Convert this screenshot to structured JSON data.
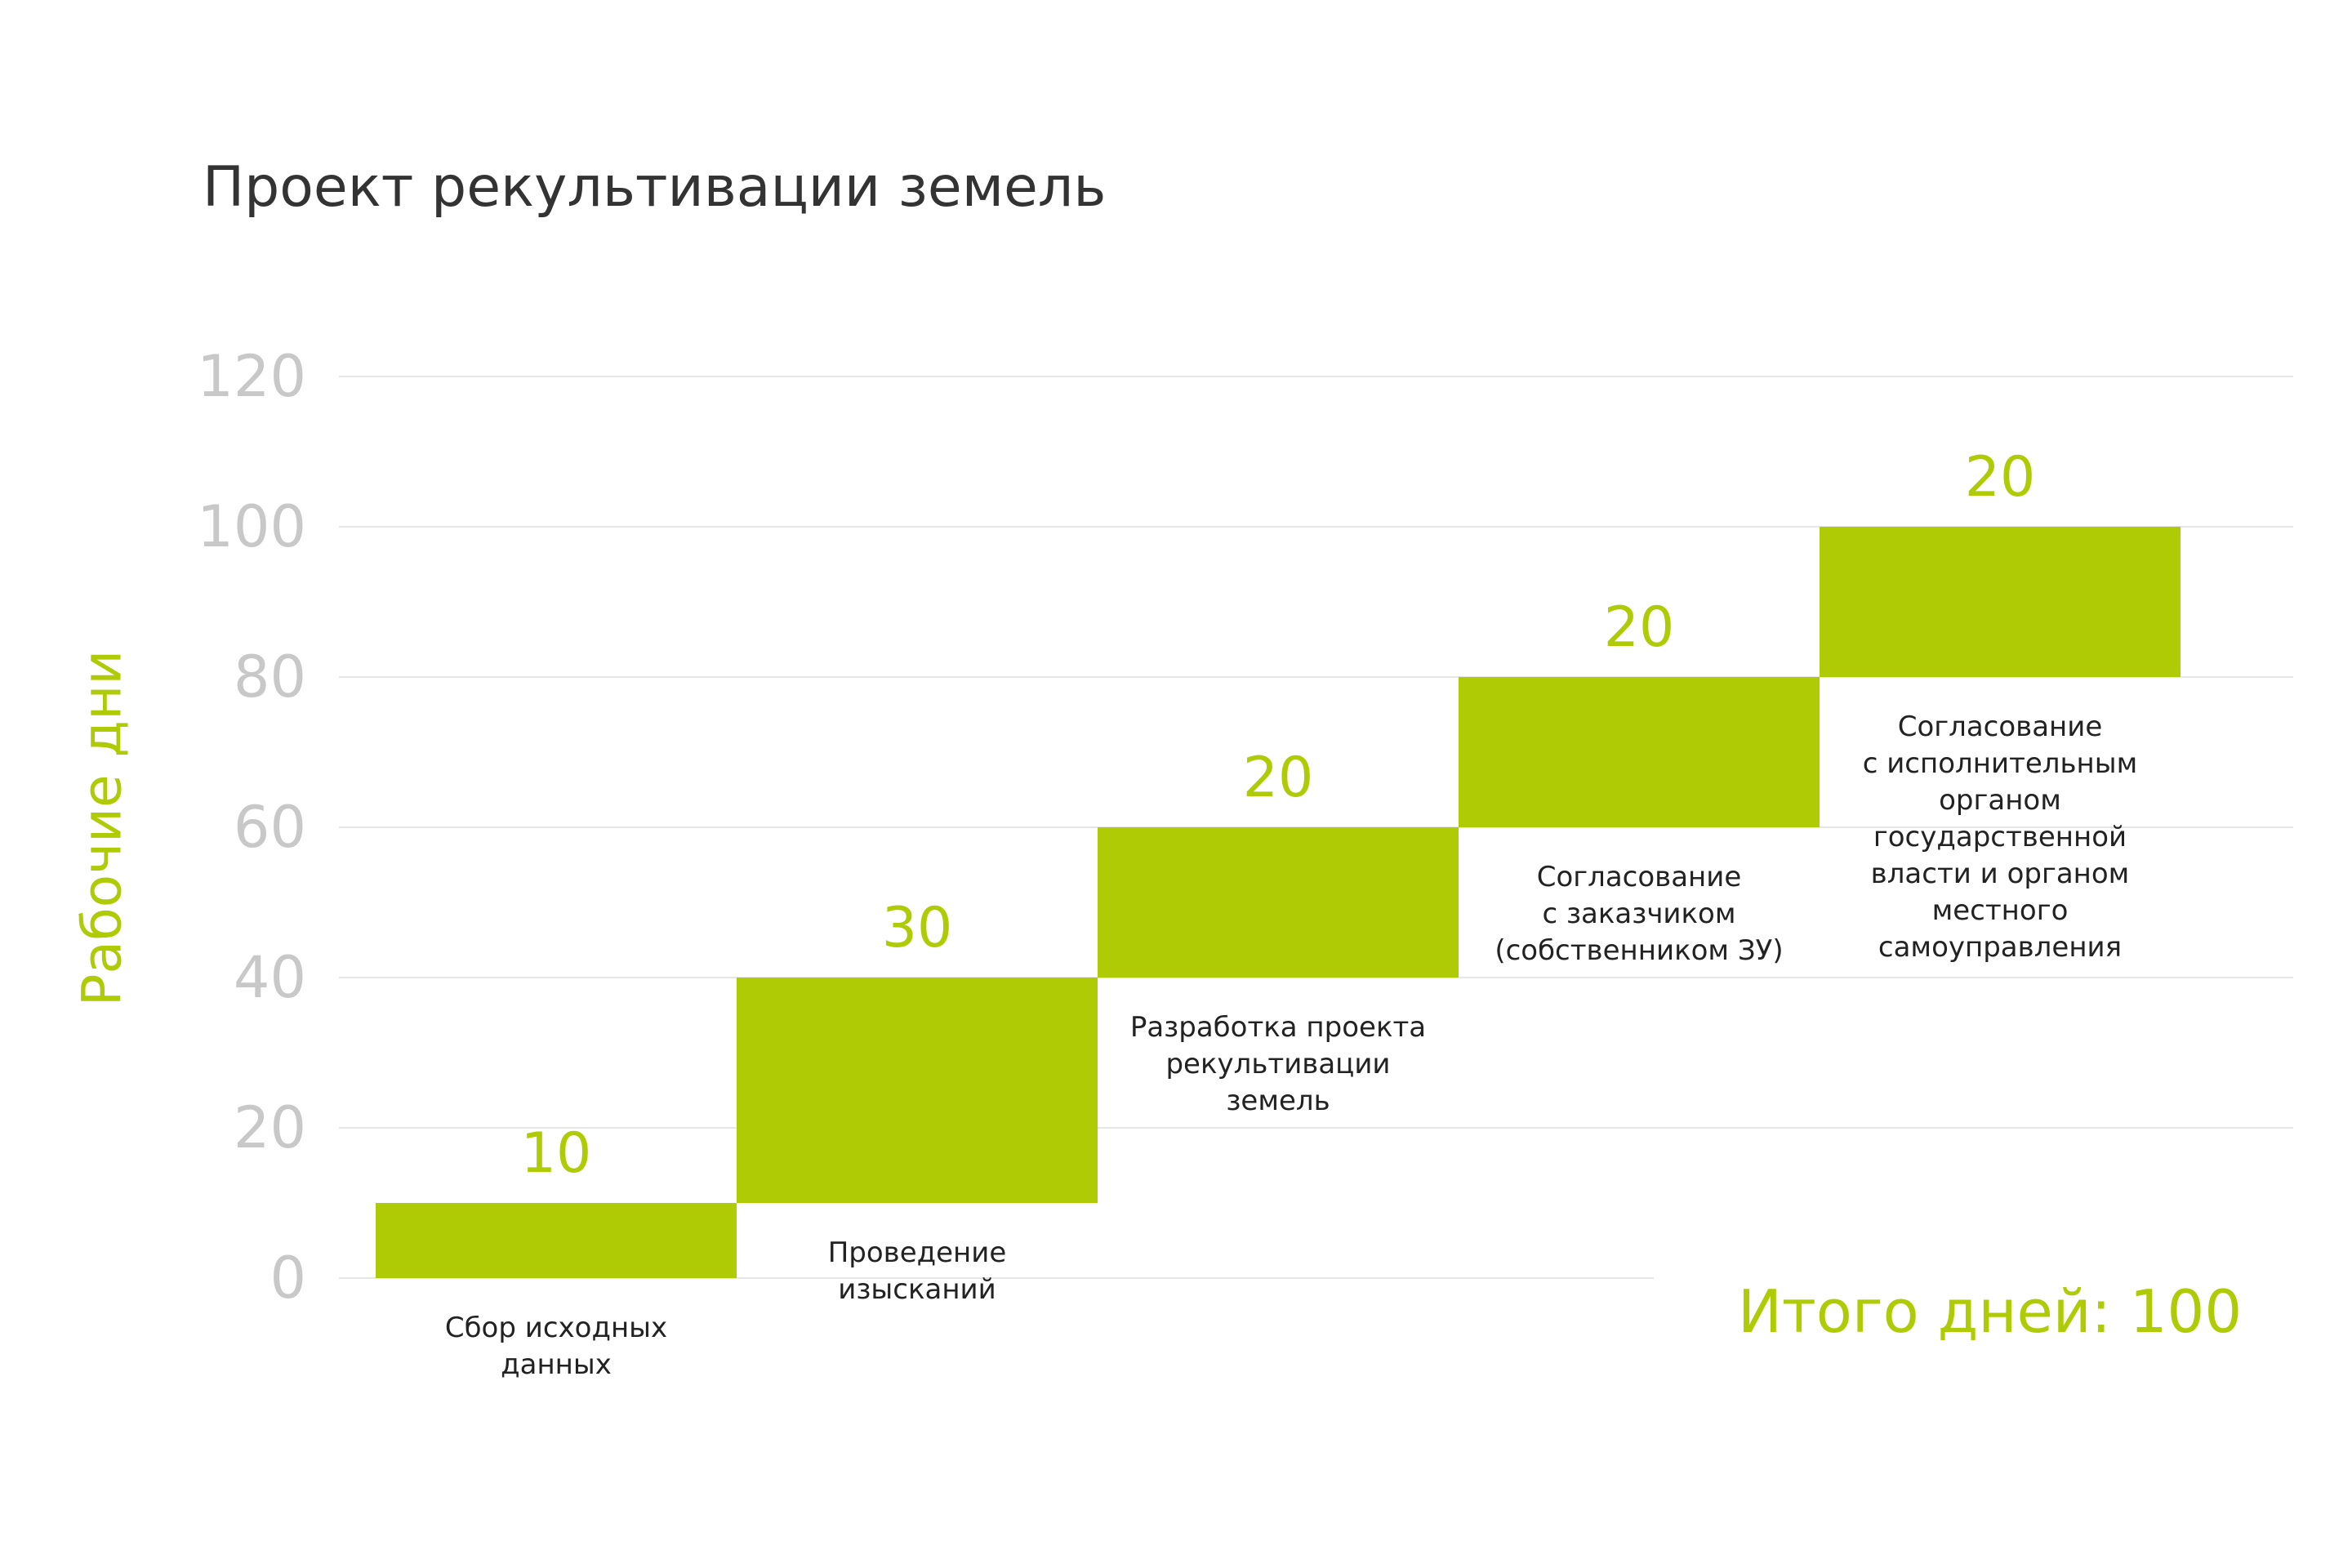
{
  "chart_data": {
    "type": "bar",
    "subtype": "waterfall",
    "title": "Проект рекультивации земель",
    "ylabel": "Рабочие дни",
    "xlabel": "",
    "ylim": [
      0,
      120
    ],
    "yticks": [
      0,
      20,
      40,
      60,
      80,
      100,
      120
    ],
    "grid": true,
    "categories": [
      [
        "Сбор исходных",
        "данных"
      ],
      [
        "Проведение",
        "изысканий"
      ],
      [
        "Разработка проекта",
        "рекультивации",
        "земель"
      ],
      [
        "Согласование",
        "с заказчиком",
        "(собственником ЗУ)"
      ],
      [
        "Согласование",
        "с исполнительным",
        "органом",
        "государственной",
        "власти и органом",
        "местного",
        "самоуправления"
      ]
    ],
    "values": [
      10,
      30,
      20,
      20,
      20
    ],
    "data_labels": [
      "10",
      "30",
      "20",
      "20",
      "20"
    ],
    "total_label": "Итого дней: 100"
  },
  "colors": {
    "bar": "#afcb06",
    "grid": "#e6e6e6",
    "tick": "#c8c8c8",
    "title": "#333333",
    "category_text": "#222222"
  }
}
